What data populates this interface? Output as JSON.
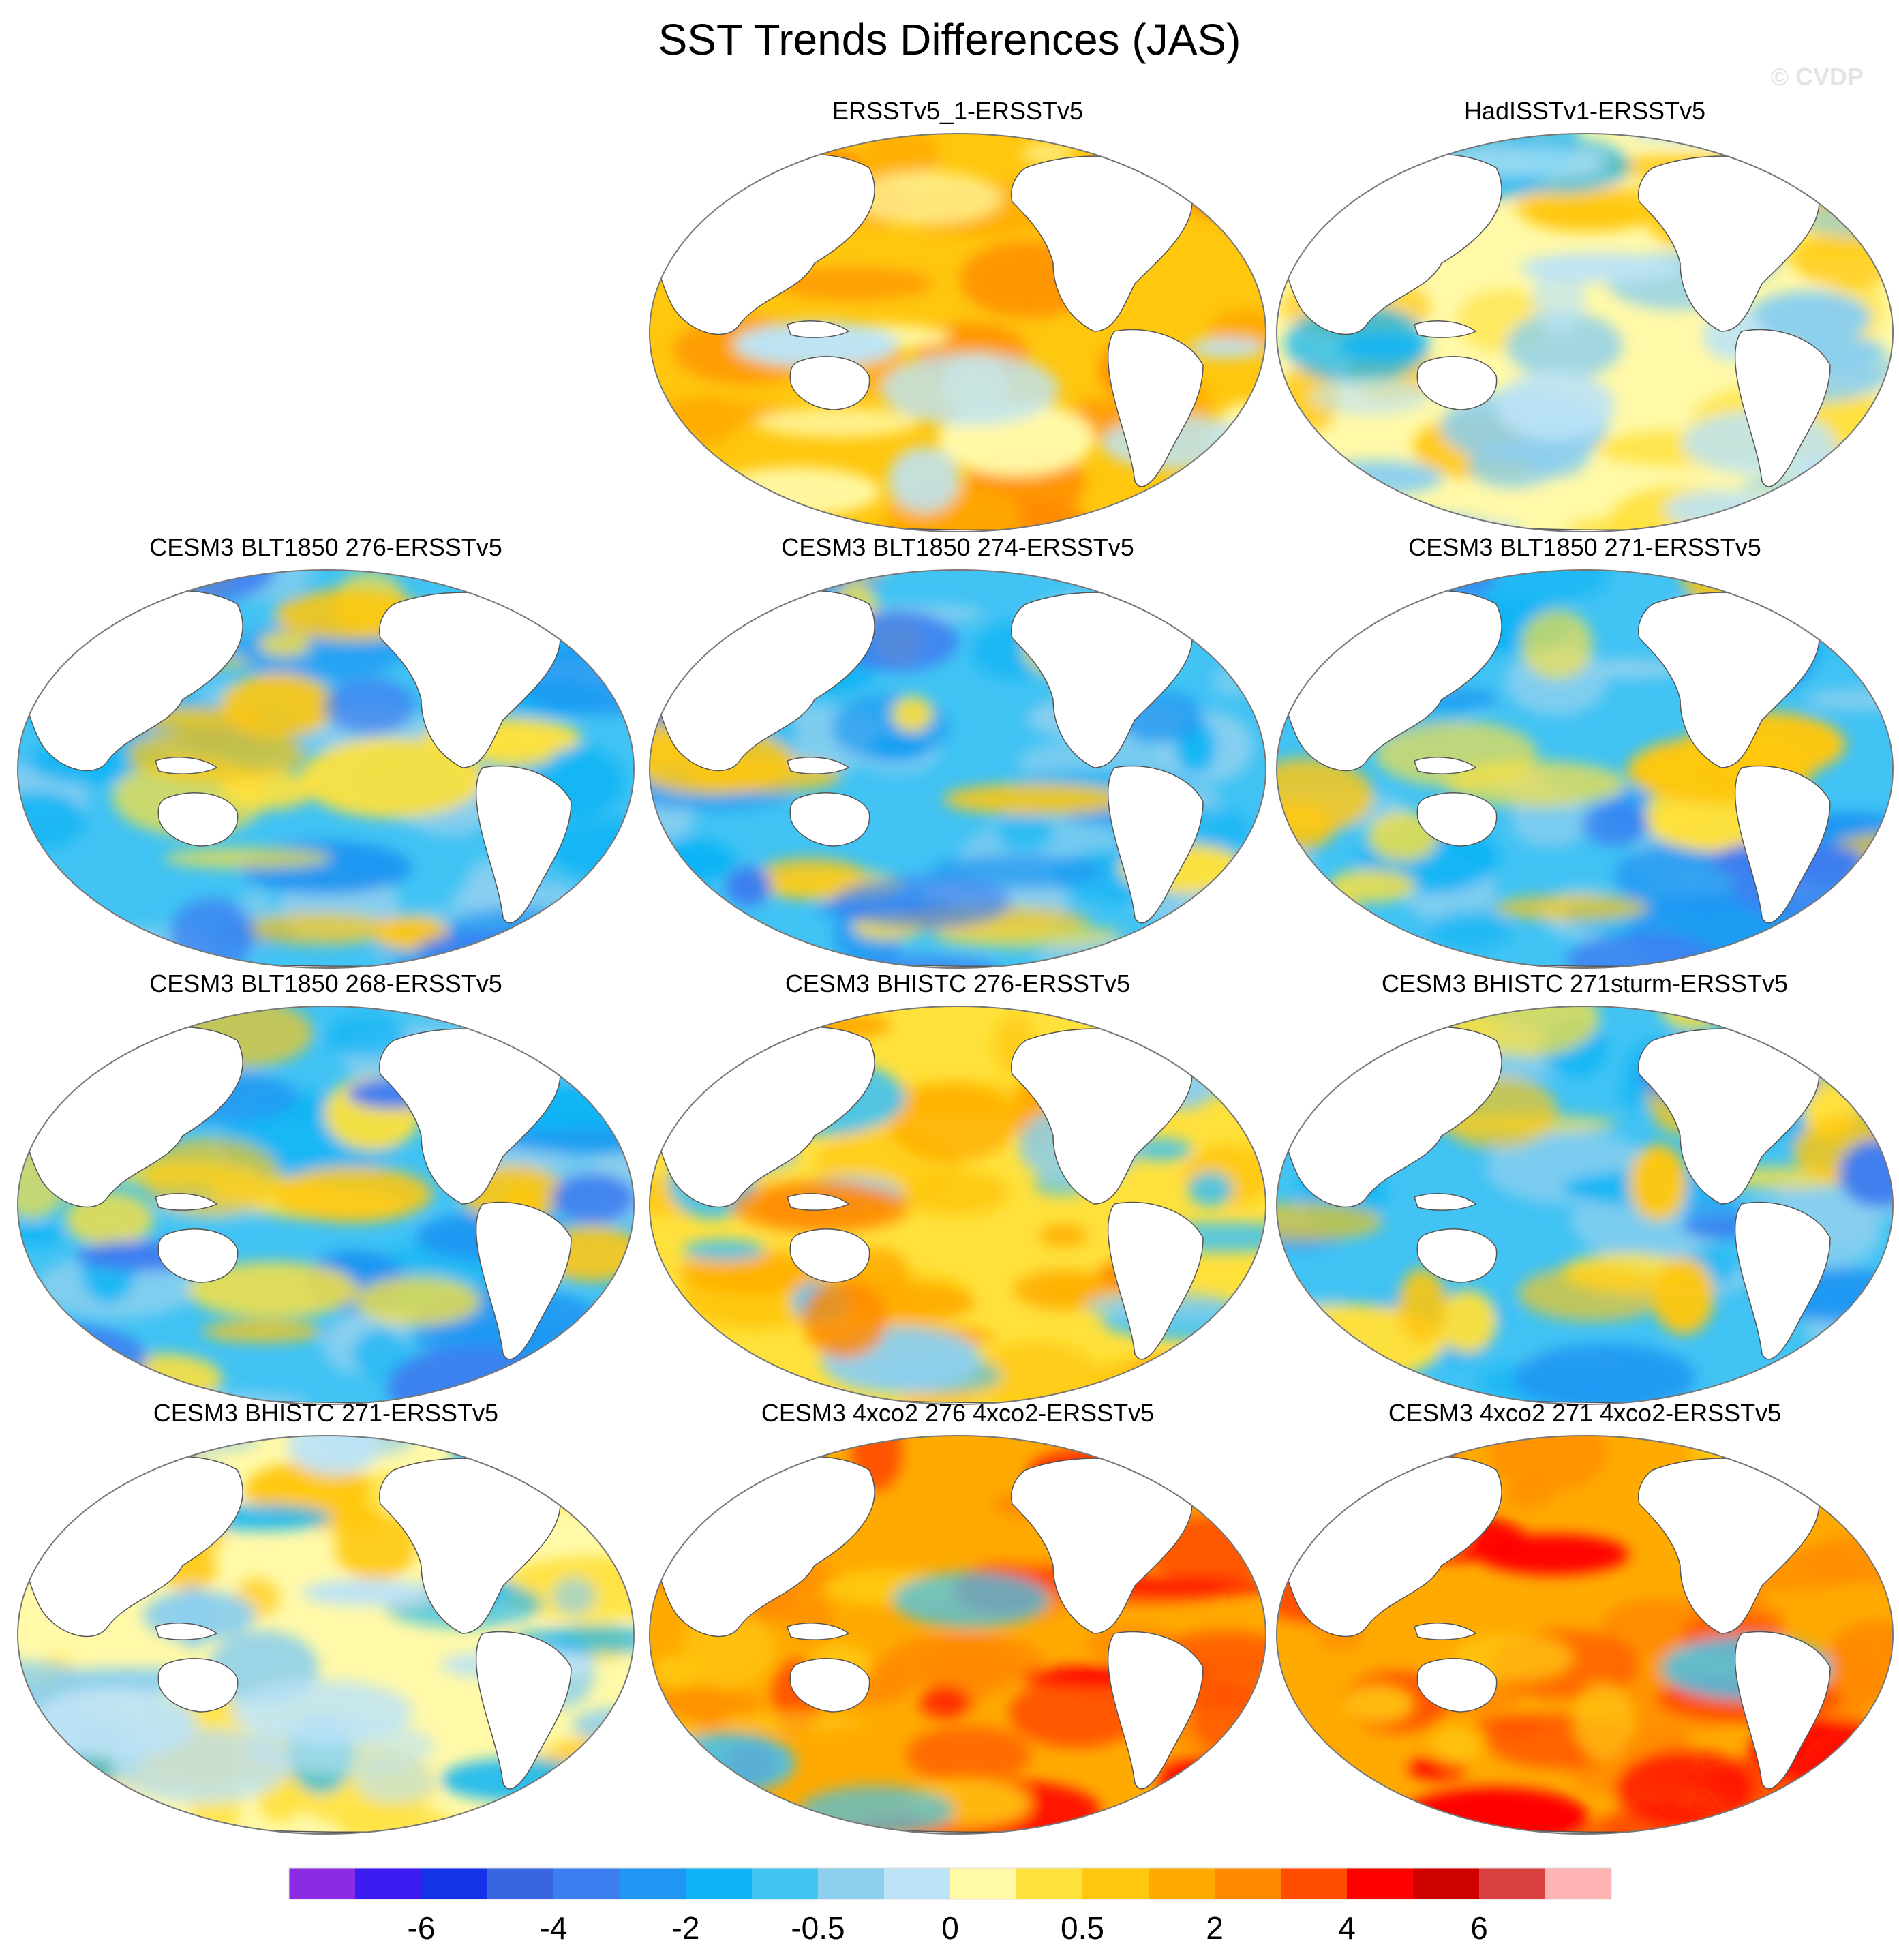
{
  "title": "SST Trends Differences (JAS)",
  "watermark": "© CVDP",
  "chart_data": {
    "type": "heatmap",
    "projection": "Robinson (Pacific-centered)",
    "colorbar": {
      "tick_labels": [
        "-6",
        "-4",
        "-2",
        "-0.5",
        "0",
        "0.5",
        "2",
        "4",
        "6"
      ],
      "colors": [
        "#8b2be2",
        "#3a1bf0",
        "#1433e6",
        "#3865e0",
        "#3d7ef0",
        "#1e96f2",
        "#0eb4f5",
        "#41c3f4",
        "#8ccfee",
        "#bde3f6",
        "#fff9a8",
        "#ffe13c",
        "#ffc70e",
        "#ffaa00",
        "#ff8a00",
        "#ff4d00",
        "#ff0000",
        "#cf0000",
        "#d94040",
        "#ffb4b4"
      ]
    },
    "panels": [
      {
        "title": "ERSSTv5_1-ERSSTv5",
        "dominant": "warm",
        "tone": "orange"
      },
      {
        "title": "HadISSTv1-ERSSTv5",
        "dominant": "mixed",
        "tone": "yellow/blue"
      },
      {
        "title": "CESM3 BLT1850 276-ERSSTv5",
        "dominant": "cool",
        "tone": "blue"
      },
      {
        "title": "CESM3 BLT1850 274-ERSSTv5",
        "dominant": "cool",
        "tone": "blue"
      },
      {
        "title": "CESM3 BLT1850 271-ERSSTv5",
        "dominant": "cool",
        "tone": "blue"
      },
      {
        "title": "CESM3 BLT1850 268-ERSSTv5",
        "dominant": "cool",
        "tone": "blue"
      },
      {
        "title": "CESM3 BHISTC 276-ERSSTv5",
        "dominant": "mixed",
        "tone": "orange/blue"
      },
      {
        "title": "CESM3 BHISTC 271sturm-ERSSTv5",
        "dominant": "cool",
        "tone": "blue"
      },
      {
        "title": "CESM3 BHISTC 271-ERSSTv5",
        "dominant": "mixed",
        "tone": "yellow/blue"
      },
      {
        "title": "CESM3 4xco2 276 4xco2-ERSSTv5",
        "dominant": "strong warm",
        "tone": "red/orange"
      },
      {
        "title": "CESM3 4xco2 271 4xco2-ERSSTv5",
        "dominant": "strong warm",
        "tone": "red/orange"
      }
    ]
  }
}
